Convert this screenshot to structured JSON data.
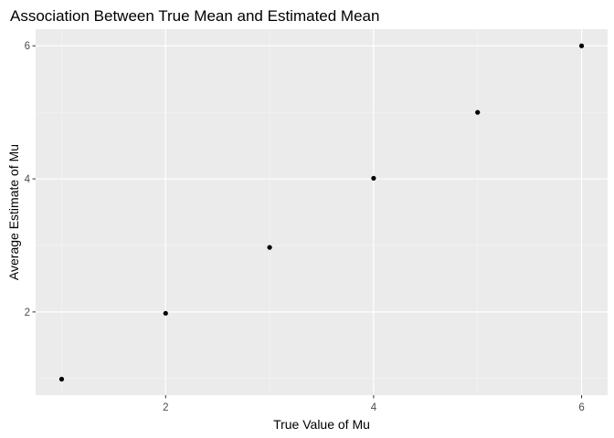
{
  "chart_data": {
    "type": "scatter",
    "title": "Association Between True Mean and Estimated Mean",
    "xlabel": "True Value of Mu",
    "ylabel": "Average Estimate of Mu",
    "x": [
      1,
      2,
      3,
      4,
      5,
      6
    ],
    "y": [
      0.99,
      1.98,
      2.97,
      4.01,
      5.0,
      6.0
    ],
    "xlim": [
      0.75,
      6.25
    ],
    "ylim": [
      0.75,
      6.25
    ],
    "x_ticks": [
      2,
      4,
      6
    ],
    "y_ticks": [
      2,
      4,
      6
    ],
    "x_minor": [
      1,
      3,
      5
    ],
    "y_minor": [
      1,
      3,
      5
    ],
    "grid": true,
    "colors": {
      "panel": "#ebebeb",
      "grid_major": "#ffffff",
      "point": "#000000",
      "tick": "#333333"
    }
  }
}
